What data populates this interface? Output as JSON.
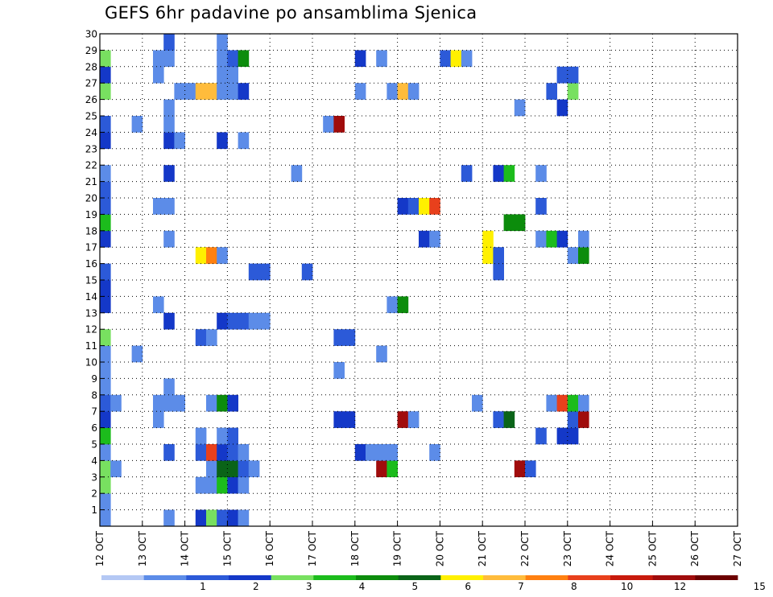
{
  "chart_data": {
    "type": "heatmap",
    "title": "GEFS 6hr padavine po ansamblima Sjenica",
    "x_ticks": [
      "12 OCT",
      "13 OCT",
      "14 OCT",
      "15 OCT",
      "16 OCT",
      "17 OCT",
      "18 OCT",
      "19 OCT",
      "20 OCT",
      "21 OCT",
      "22 OCT",
      "23 OCT",
      "24 OCT",
      "25 OCT",
      "26 OCT",
      "27 OCT"
    ],
    "y_ticks": [
      "1",
      "2",
      "3",
      "4",
      "5",
      "6",
      "7",
      "8",
      "9",
      "10",
      "11",
      "12",
      "13",
      "14",
      "15",
      "16",
      "17",
      "18",
      "19",
      "20",
      "21",
      "22",
      "23",
      "24",
      "25",
      "26",
      "27",
      "28",
      "29",
      "30"
    ],
    "xlim": [
      0,
      60
    ],
    "ylim": [
      0,
      30
    ],
    "grid": true,
    "colorbar": {
      "labels": [
        "1",
        "2",
        "3",
        "4",
        "5",
        "6",
        "7",
        "8",
        "10",
        "12",
        "15",
        "20"
      ],
      "colors": [
        "#b4c8f4",
        "#5c8ce8",
        "#2c5ad8",
        "#1438c8",
        "#78e060",
        "#1cbc1c",
        "#0c8c0c",
        "#0a6418",
        "#fff000",
        "#ffbc3c",
        "#ff8010",
        "#e8401c",
        "#c81a0c",
        "#a00c0c",
        "#6c0000"
      ]
    },
    "cells": [
      {
        "x": 0,
        "y": 0,
        "v": 1
      },
      {
        "x": 0,
        "y": 1,
        "v": 1
      },
      {
        "x": 0,
        "y": 2,
        "v": 4
      },
      {
        "x": 0,
        "y": 3,
        "v": 4
      },
      {
        "x": 0,
        "y": 4,
        "v": 1
      },
      {
        "x": 0,
        "y": 5,
        "v": 5
      },
      {
        "x": 0,
        "y": 6,
        "v": 3
      },
      {
        "x": 0,
        "y": 7,
        "v": 2
      },
      {
        "x": 0,
        "y": 8,
        "v": 1
      },
      {
        "x": 0,
        "y": 9,
        "v": 1
      },
      {
        "x": 0,
        "y": 10,
        "v": 1
      },
      {
        "x": 0,
        "y": 11,
        "v": 4
      },
      {
        "x": 0,
        "y": 13,
        "v": 3
      },
      {
        "x": 0,
        "y": 14,
        "v": 3
      },
      {
        "x": 0,
        "y": 15,
        "v": 2
      },
      {
        "x": 0,
        "y": 17,
        "v": 3
      },
      {
        "x": 0,
        "y": 18,
        "v": 5
      },
      {
        "x": 0,
        "y": 19,
        "v": 2
      },
      {
        "x": 0,
        "y": 20,
        "v": 2
      },
      {
        "x": 0,
        "y": 21,
        "v": 1
      },
      {
        "x": 0,
        "y": 23,
        "v": 3
      },
      {
        "x": 0,
        "y": 24,
        "v": 2
      },
      {
        "x": 0,
        "y": 26,
        "v": 4
      },
      {
        "x": 0,
        "y": 27,
        "v": 3
      },
      {
        "x": 0,
        "y": 28,
        "v": 4
      },
      {
        "x": 1,
        "y": 3,
        "v": 1
      },
      {
        "x": 1,
        "y": 7,
        "v": 1
      },
      {
        "x": 3,
        "y": 10,
        "v": 1
      },
      {
        "x": 3,
        "y": 24,
        "v": 1
      },
      {
        "x": 5,
        "y": 6,
        "v": 1
      },
      {
        "x": 5,
        "y": 7,
        "v": 1
      },
      {
        "x": 5,
        "y": 13,
        "v": 1
      },
      {
        "x": 5,
        "y": 19,
        "v": 1
      },
      {
        "x": 5,
        "y": 27,
        "v": 1
      },
      {
        "x": 5,
        "y": 28,
        "v": 1
      },
      {
        "x": 6,
        "y": 0,
        "v": 1
      },
      {
        "x": 6,
        "y": 4,
        "v": 2
      },
      {
        "x": 6,
        "y": 7,
        "v": 1
      },
      {
        "x": 6,
        "y": 8,
        "v": 1
      },
      {
        "x": 6,
        "y": 12,
        "v": 3
      },
      {
        "x": 6,
        "y": 17,
        "v": 1
      },
      {
        "x": 6,
        "y": 19,
        "v": 1
      },
      {
        "x": 6,
        "y": 21,
        "v": 3
      },
      {
        "x": 6,
        "y": 23,
        "v": 3
      },
      {
        "x": 6,
        "y": 24,
        "v": 1
      },
      {
        "x": 6,
        "y": 25,
        "v": 1
      },
      {
        "x": 6,
        "y": 28,
        "v": 1
      },
      {
        "x": 6,
        "y": 29,
        "v": 2
      },
      {
        "x": 7,
        "y": 7,
        "v": 1
      },
      {
        "x": 7,
        "y": 23,
        "v": 1
      },
      {
        "x": 7,
        "y": 26,
        "v": 1
      },
      {
        "x": 8,
        "y": 26,
        "v": 1
      },
      {
        "x": 9,
        "y": 0,
        "v": 3
      },
      {
        "x": 9,
        "y": 2,
        "v": 1
      },
      {
        "x": 9,
        "y": 4,
        "v": 2
      },
      {
        "x": 9,
        "y": 5,
        "v": 1
      },
      {
        "x": 9,
        "y": 11,
        "v": 2
      },
      {
        "x": 9,
        "y": 16,
        "v": 8
      },
      {
        "x": 9,
        "y": 26,
        "v": 9
      },
      {
        "x": 10,
        "y": -1,
        "v": 12
      },
      {
        "x": 10,
        "y": 0,
        "v": 4
      },
      {
        "x": 10,
        "y": 2,
        "v": 1
      },
      {
        "x": 10,
        "y": 3,
        "v": 1
      },
      {
        "x": 10,
        "y": 4,
        "v": 11
      },
      {
        "x": 10,
        "y": 7,
        "v": 1
      },
      {
        "x": 10,
        "y": 11,
        "v": 1
      },
      {
        "x": 10,
        "y": 16,
        "v": 10
      },
      {
        "x": 10,
        "y": 26,
        "v": 9
      },
      {
        "x": 11,
        "y": -1,
        "v": 5
      },
      {
        "x": 11,
        "y": 0,
        "v": 2
      },
      {
        "x": 11,
        "y": 2,
        "v": 5
      },
      {
        "x": 11,
        "y": 3,
        "v": 7
      },
      {
        "x": 11,
        "y": 4,
        "v": 3
      },
      {
        "x": 11,
        "y": 5,
        "v": 1
      },
      {
        "x": 11,
        "y": 7,
        "v": 6
      },
      {
        "x": 11,
        "y": 12,
        "v": 3
      },
      {
        "x": 11,
        "y": 16,
        "v": 1
      },
      {
        "x": 11,
        "y": 23,
        "v": 3
      },
      {
        "x": 11,
        "y": 26,
        "v": 1
      },
      {
        "x": 11,
        "y": 27,
        "v": 1
      },
      {
        "x": 11,
        "y": 28,
        "v": 1
      },
      {
        "x": 11,
        "y": 29,
        "v": 1
      },
      {
        "x": 12,
        "y": -1,
        "v": 6
      },
      {
        "x": 12,
        "y": 0,
        "v": 3
      },
      {
        "x": 12,
        "y": 2,
        "v": 3
      },
      {
        "x": 12,
        "y": 3,
        "v": 7
      },
      {
        "x": 12,
        "y": 4,
        "v": 2
      },
      {
        "x": 12,
        "y": 5,
        "v": 2
      },
      {
        "x": 12,
        "y": 7,
        "v": 3
      },
      {
        "x": 12,
        "y": 12,
        "v": 2
      },
      {
        "x": 12,
        "y": 26,
        "v": 1
      },
      {
        "x": 12,
        "y": 27,
        "v": 1
      },
      {
        "x": 12,
        "y": 28,
        "v": 2
      },
      {
        "x": 13,
        "y": 0,
        "v": 1
      },
      {
        "x": 13,
        "y": 2,
        "v": 1
      },
      {
        "x": 13,
        "y": 3,
        "v": 2
      },
      {
        "x": 13,
        "y": 4,
        "v": 1
      },
      {
        "x": 13,
        "y": 12,
        "v": 2
      },
      {
        "x": 13,
        "y": 23,
        "v": 1
      },
      {
        "x": 13,
        "y": 26,
        "v": 3
      },
      {
        "x": 13,
        "y": 28,
        "v": 6
      },
      {
        "x": 14,
        "y": 3,
        "v": 1
      },
      {
        "x": 14,
        "y": 12,
        "v": 1
      },
      {
        "x": 14,
        "y": 15,
        "v": 2
      },
      {
        "x": 15,
        "y": -1,
        "v": 2
      },
      {
        "x": 15,
        "y": 12,
        "v": 1
      },
      {
        "x": 15,
        "y": 15,
        "v": 2
      },
      {
        "x": 16,
        "y": -1,
        "v": 5
      },
      {
        "x": 18,
        "y": 21,
        "v": 1
      },
      {
        "x": 19,
        "y": 15,
        "v": 2
      },
      {
        "x": 21,
        "y": 24,
        "v": 1
      },
      {
        "x": 22,
        "y": -1,
        "v": 1
      },
      {
        "x": 22,
        "y": 6,
        "v": 3
      },
      {
        "x": 22,
        "y": 9,
        "v": 1
      },
      {
        "x": 22,
        "y": 11,
        "v": 2
      },
      {
        "x": 22,
        "y": 24,
        "v": 13
      },
      {
        "x": 23,
        "y": 6,
        "v": 3
      },
      {
        "x": 23,
        "y": 11,
        "v": 2
      },
      {
        "x": 24,
        "y": -1,
        "v": 1
      },
      {
        "x": 24,
        "y": 4,
        "v": 3
      },
      {
        "x": 24,
        "y": 26,
        "v": 1
      },
      {
        "x": 24,
        "y": 28,
        "v": 3
      },
      {
        "x": 25,
        "y": 4,
        "v": 1
      },
      {
        "x": 26,
        "y": 3,
        "v": 13
      },
      {
        "x": 26,
        "y": 4,
        "v": 1
      },
      {
        "x": 26,
        "y": 10,
        "v": 1
      },
      {
        "x": 26,
        "y": 28,
        "v": 1
      },
      {
        "x": 27,
        "y": 3,
        "v": 5
      },
      {
        "x": 27,
        "y": 4,
        "v": 1
      },
      {
        "x": 27,
        "y": 13,
        "v": 1
      },
      {
        "x": 27,
        "y": 26,
        "v": 1
      },
      {
        "x": 28,
        "y": 6,
        "v": 13
      },
      {
        "x": 28,
        "y": 13,
        "v": 6
      },
      {
        "x": 28,
        "y": 19,
        "v": 3
      },
      {
        "x": 28,
        "y": 26,
        "v": 9
      },
      {
        "x": 29,
        "y": 6,
        "v": 1
      },
      {
        "x": 29,
        "y": 19,
        "v": 2
      },
      {
        "x": 29,
        "y": 26,
        "v": 1
      },
      {
        "x": 30,
        "y": 17,
        "v": 3
      },
      {
        "x": 30,
        "y": 19,
        "v": 8
      },
      {
        "x": 31,
        "y": 4,
        "v": 1
      },
      {
        "x": 31,
        "y": 17,
        "v": 1
      },
      {
        "x": 31,
        "y": 19,
        "v": 11
      },
      {
        "x": 32,
        "y": 28,
        "v": 2
      },
      {
        "x": 33,
        "y": 28,
        "v": 8
      },
      {
        "x": 34,
        "y": 21,
        "v": 2
      },
      {
        "x": 34,
        "y": 28,
        "v": 1
      },
      {
        "x": 35,
        "y": 7,
        "v": 1
      },
      {
        "x": 36,
        "y": -1,
        "v": 7
      },
      {
        "x": 36,
        "y": 16,
        "v": 8
      },
      {
        "x": 36,
        "y": 17,
        "v": 8
      },
      {
        "x": 37,
        "y": 6,
        "v": 2
      },
      {
        "x": 37,
        "y": 15,
        "v": 2
      },
      {
        "x": 37,
        "y": 16,
        "v": 2
      },
      {
        "x": 37,
        "y": 21,
        "v": 3
      },
      {
        "x": 38,
        "y": 6,
        "v": 7
      },
      {
        "x": 38,
        "y": 18,
        "v": 6
      },
      {
        "x": 38,
        "y": 21,
        "v": 5
      },
      {
        "x": 39,
        "y": 3,
        "v": 13
      },
      {
        "x": 39,
        "y": 18,
        "v": 6
      },
      {
        "x": 39,
        "y": 25,
        "v": 1
      },
      {
        "x": 40,
        "y": 3,
        "v": 2
      },
      {
        "x": 41,
        "y": 5,
        "v": 2
      },
      {
        "x": 41,
        "y": 17,
        "v": 1
      },
      {
        "x": 41,
        "y": 19,
        "v": 2
      },
      {
        "x": 41,
        "y": 21,
        "v": 1
      },
      {
        "x": 42,
        "y": 7,
        "v": 1
      },
      {
        "x": 42,
        "y": 17,
        "v": 5
      },
      {
        "x": 42,
        "y": 26,
        "v": 2
      },
      {
        "x": 43,
        "y": 5,
        "v": 3
      },
      {
        "x": 43,
        "y": 7,
        "v": 11
      },
      {
        "x": 43,
        "y": 17,
        "v": 3
      },
      {
        "x": 43,
        "y": 25,
        "v": 3
      },
      {
        "x": 43,
        "y": 27,
        "v": 2
      },
      {
        "x": 44,
        "y": -1,
        "v": 13
      },
      {
        "x": 44,
        "y": 5,
        "v": 3
      },
      {
        "x": 44,
        "y": 6,
        "v": 2
      },
      {
        "x": 44,
        "y": 7,
        "v": 5
      },
      {
        "x": 44,
        "y": 16,
        "v": 1
      },
      {
        "x": 44,
        "y": 26,
        "v": 4
      },
      {
        "x": 44,
        "y": 27,
        "v": 2
      },
      {
        "x": 45,
        "y": 6,
        "v": 13
      },
      {
        "x": 45,
        "y": 7,
        "v": 1
      },
      {
        "x": 45,
        "y": 16,
        "v": 6
      },
      {
        "x": 45,
        "y": 17,
        "v": 1
      }
    ]
  }
}
